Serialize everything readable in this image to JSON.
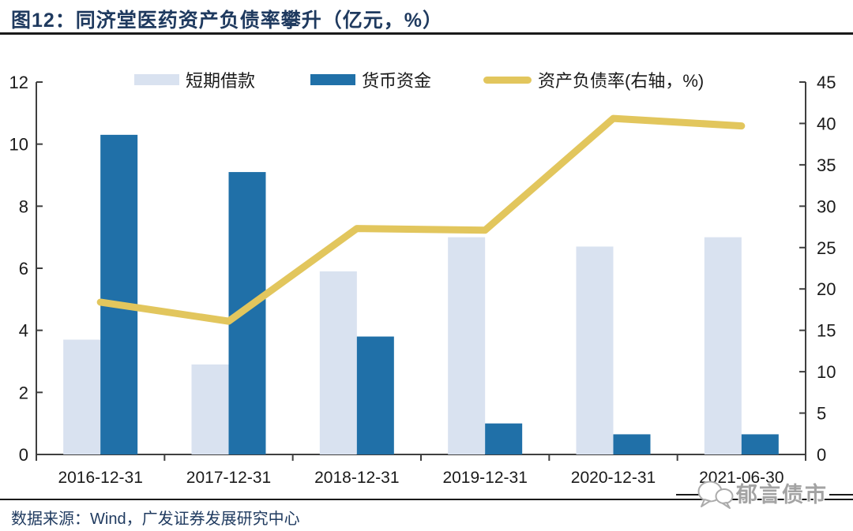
{
  "chart_data": {
    "type": "combo_bar_line",
    "title": "图12：同济堂医药资产负债率攀升（亿元，%）",
    "categories": [
      "2016-12-31",
      "2017-12-31",
      "2018-12-31",
      "2019-12-31",
      "2020-12-31",
      "2021-06-30"
    ],
    "series": [
      {
        "id": "short-term-borrowings",
        "name": "短期借款",
        "type": "bar",
        "axis": "left",
        "color": "#D9E2F0",
        "values": [
          3.7,
          2.9,
          5.9,
          7.0,
          6.7,
          7.0
        ]
      },
      {
        "id": "monetary-funds",
        "name": "货币资金",
        "type": "bar",
        "axis": "left",
        "color": "#2070A8",
        "values": [
          10.3,
          9.1,
          3.8,
          1.0,
          0.65,
          0.65
        ]
      },
      {
        "id": "debt-ratio",
        "name": "资产负债率(右轴，%)",
        "type": "line",
        "axis": "right",
        "color": "#E2C65D",
        "values": [
          18.4,
          16.1,
          27.3,
          27.1,
          40.6,
          39.7
        ]
      }
    ],
    "left_axis": {
      "min": 0,
      "max": 12,
      "step": 2,
      "tick_labels": [
        "0",
        "2",
        "4",
        "6",
        "8",
        "10",
        "12"
      ]
    },
    "right_axis": {
      "min": 0,
      "max": 45,
      "step": 5,
      "tick_labels": [
        "0",
        "5",
        "10",
        "15",
        "20",
        "25",
        "30",
        "35",
        "40",
        "45"
      ]
    },
    "legend_position": "top",
    "grid": false,
    "units_note": "亿元, %"
  },
  "footer": {
    "source": "数据来源：Wind，广发证券发展研究中心"
  },
  "watermark": {
    "text": "郁言债市"
  },
  "colors": {
    "title_text": "#1F3A5F",
    "footer_text": "#1F3A5F",
    "rule": "#1a1a1a",
    "axis": "#3f3f3f",
    "tick_label": "#1a1a1a",
    "watermark_gray": "#a3a3a3"
  }
}
